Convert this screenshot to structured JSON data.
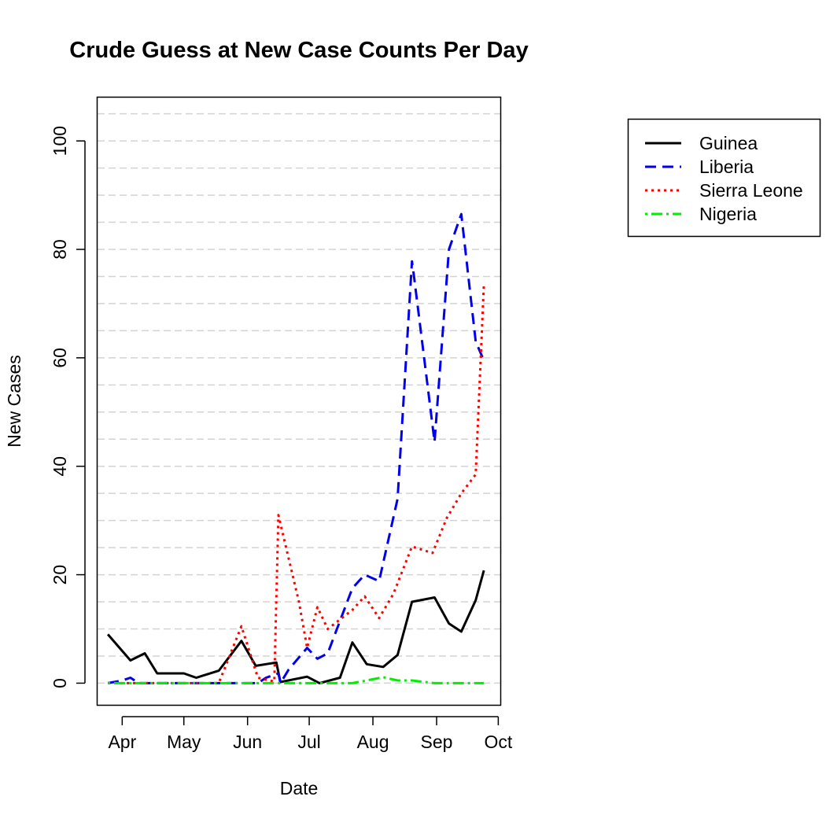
{
  "chart_data": {
    "type": "line",
    "title": "Crude Guess at New Case Counts Per Day",
    "xlabel": "Date",
    "ylabel": "New Cases",
    "xlim": [
      "2014-03-20",
      "2014-10-02"
    ],
    "ylim": [
      -4,
      108
    ],
    "x_ticks": [
      {
        "date": "2014-04-01",
        "label": "Apr"
      },
      {
        "date": "2014-05-01",
        "label": "May"
      },
      {
        "date": "2014-06-01",
        "label": "Jun"
      },
      {
        "date": "2014-07-01",
        "label": "Jul"
      },
      {
        "date": "2014-08-01",
        "label": "Aug"
      },
      {
        "date": "2014-09-01",
        "label": "Sep"
      },
      {
        "date": "2014-10-01",
        "label": "Oct"
      }
    ],
    "y_ticks": [
      0,
      20,
      40,
      60,
      80,
      100
    ],
    "gridlines_y": [
      0,
      5,
      10,
      15,
      20,
      25,
      30,
      35,
      40,
      45,
      50,
      55,
      60,
      65,
      70,
      75,
      80,
      85,
      90,
      95,
      100,
      105
    ],
    "grid": true,
    "legend_position": "outside-top-right",
    "series": [
      {
        "name": "Guinea",
        "color": "#000000",
        "dash": "solid",
        "points": [
          [
            "2014-03-25",
            9
          ],
          [
            "2014-04-05",
            4.2
          ],
          [
            "2014-04-12",
            5.5
          ],
          [
            "2014-04-18",
            1.8
          ],
          [
            "2014-05-01",
            1.8
          ],
          [
            "2014-05-07",
            1
          ],
          [
            "2014-05-18",
            2.3
          ],
          [
            "2014-05-29",
            7.8
          ],
          [
            "2014-06-05",
            3.2
          ],
          [
            "2014-06-15",
            3.8
          ],
          [
            "2014-06-17",
            0.2
          ],
          [
            "2014-06-30",
            1.2
          ],
          [
            "2014-07-06",
            0
          ],
          [
            "2014-07-16",
            1
          ],
          [
            "2014-07-22",
            7.5
          ],
          [
            "2014-07-29",
            3.5
          ],
          [
            "2014-08-06",
            3
          ],
          [
            "2014-08-13",
            5.2
          ],
          [
            "2014-08-20",
            15
          ],
          [
            "2014-08-31",
            15.8
          ],
          [
            "2014-09-07",
            11
          ],
          [
            "2014-09-13",
            9.5
          ],
          [
            "2014-09-20",
            15.3
          ],
          [
            "2014-09-24",
            20.8
          ]
        ]
      },
      {
        "name": "Liberia",
        "color": "#0000ee",
        "dash": "dashed",
        "points": [
          [
            "2014-03-25",
            0
          ],
          [
            "2014-04-01",
            0.5
          ],
          [
            "2014-04-05",
            1
          ],
          [
            "2014-04-09",
            0
          ],
          [
            "2014-06-06",
            0
          ],
          [
            "2014-06-10",
            1
          ],
          [
            "2014-06-16",
            1.8
          ],
          [
            "2014-06-17",
            0
          ],
          [
            "2014-06-21",
            2.5
          ],
          [
            "2014-06-30",
            6.5
          ],
          [
            "2014-07-05",
            4.5
          ],
          [
            "2014-07-10",
            5.5
          ],
          [
            "2014-07-22",
            17.5
          ],
          [
            "2014-07-28",
            20
          ],
          [
            "2014-08-04",
            18.8
          ],
          [
            "2014-08-13",
            34
          ],
          [
            "2014-08-20",
            77.8
          ],
          [
            "2014-08-21",
            75
          ],
          [
            "2014-08-31",
            44.5
          ],
          [
            "2014-09-07",
            80
          ],
          [
            "2014-09-13",
            86.5
          ],
          [
            "2014-09-20",
            63
          ],
          [
            "2014-09-24",
            59.5
          ]
        ]
      },
      {
        "name": "Sierra Leone",
        "color": "#ff0000",
        "dash": "dotted",
        "points": [
          [
            "2014-03-25",
            0
          ],
          [
            "2014-05-18",
            0
          ],
          [
            "2014-05-29",
            10.5
          ],
          [
            "2014-06-06",
            1
          ],
          [
            "2014-06-14",
            0.3
          ],
          [
            "2014-06-16",
            31
          ],
          [
            "2014-06-26",
            15
          ],
          [
            "2014-06-30",
            6.5
          ],
          [
            "2014-07-05",
            14
          ],
          [
            "2014-07-10",
            10
          ],
          [
            "2014-07-22",
            13.5
          ],
          [
            "2014-07-28",
            16
          ],
          [
            "2014-08-04",
            12
          ],
          [
            "2014-08-11",
            16.5
          ],
          [
            "2014-08-20",
            25.2
          ],
          [
            "2014-08-30",
            24
          ],
          [
            "2014-09-06",
            30.5
          ],
          [
            "2014-09-13",
            35
          ],
          [
            "2014-09-20",
            38.5
          ],
          [
            "2014-09-24",
            73.5
          ]
        ]
      },
      {
        "name": "Nigeria",
        "color": "#00ee00",
        "dash": "dotdash",
        "points": [
          [
            "2014-03-25",
            0
          ],
          [
            "2014-07-22",
            0
          ],
          [
            "2014-07-29",
            0.5
          ],
          [
            "2014-08-06",
            1.1
          ],
          [
            "2014-08-13",
            0.5
          ],
          [
            "2014-08-20",
            0.5
          ],
          [
            "2014-08-31",
            0
          ],
          [
            "2014-09-24",
            0
          ]
        ]
      }
    ]
  }
}
